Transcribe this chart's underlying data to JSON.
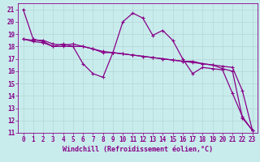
{
  "background_color": "#c8ecec",
  "grid_color": "#b8d8d8",
  "line_color": "#880088",
  "marker": "+",
  "markersize": 3,
  "linewidth": 0.9,
  "xlabel": "Windchill (Refroidissement éolien,°C)",
  "xlabel_fontsize": 6.0,
  "tick_fontsize": 5.5,
  "xlim": [
    -0.5,
    23.5
  ],
  "ylim": [
    11,
    21.5
  ],
  "yticks": [
    11,
    12,
    13,
    14,
    15,
    16,
    17,
    18,
    19,
    20,
    21
  ],
  "xticks": [
    0,
    1,
    2,
    3,
    4,
    5,
    6,
    7,
    8,
    9,
    10,
    11,
    12,
    13,
    14,
    15,
    16,
    17,
    18,
    19,
    20,
    21,
    22,
    23
  ],
  "series": [
    {
      "x": [
        0,
        1,
        2,
        3,
        4,
        5,
        6,
        7,
        8,
        9,
        10,
        11,
        12,
        13,
        14,
        15,
        16,
        17,
        18,
        19,
        20,
        21,
        22,
        23
      ],
      "y": [
        21.0,
        18.6,
        18.4,
        18.0,
        18.0,
        18.0,
        16.6,
        15.8,
        15.5,
        17.5,
        20.0,
        20.7,
        20.3,
        18.9,
        19.3,
        18.5,
        17.0,
        15.8,
        16.3,
        16.2,
        16.1,
        14.2,
        12.3,
        11.2
      ]
    },
    {
      "x": [
        0,
        1,
        2,
        3,
        4,
        5,
        6,
        7,
        8,
        9,
        10,
        11,
        12,
        13,
        14,
        15,
        16,
        17,
        18,
        19,
        20,
        21,
        22,
        23
      ],
      "y": [
        18.6,
        18.4,
        18.3,
        18.0,
        18.2,
        18.0,
        18.0,
        17.8,
        17.6,
        17.5,
        17.4,
        17.3,
        17.2,
        17.1,
        17.0,
        16.9,
        16.8,
        16.7,
        16.6,
        16.5,
        16.4,
        16.3,
        14.4,
        11.2
      ]
    },
    {
      "x": [
        0,
        1,
        2,
        3,
        4,
        5,
        6,
        7,
        8,
        9,
        10,
        11,
        12,
        13,
        14,
        15,
        16,
        17,
        18,
        19,
        20,
        21,
        22,
        23
      ],
      "y": [
        18.6,
        18.5,
        18.5,
        18.2,
        18.1,
        18.2,
        18.0,
        17.8,
        17.5,
        17.5,
        17.4,
        17.3,
        17.2,
        17.1,
        17.0,
        16.9,
        16.8,
        16.8,
        16.6,
        16.5,
        16.2,
        16.0,
        12.2,
        11.2
      ]
    }
  ]
}
